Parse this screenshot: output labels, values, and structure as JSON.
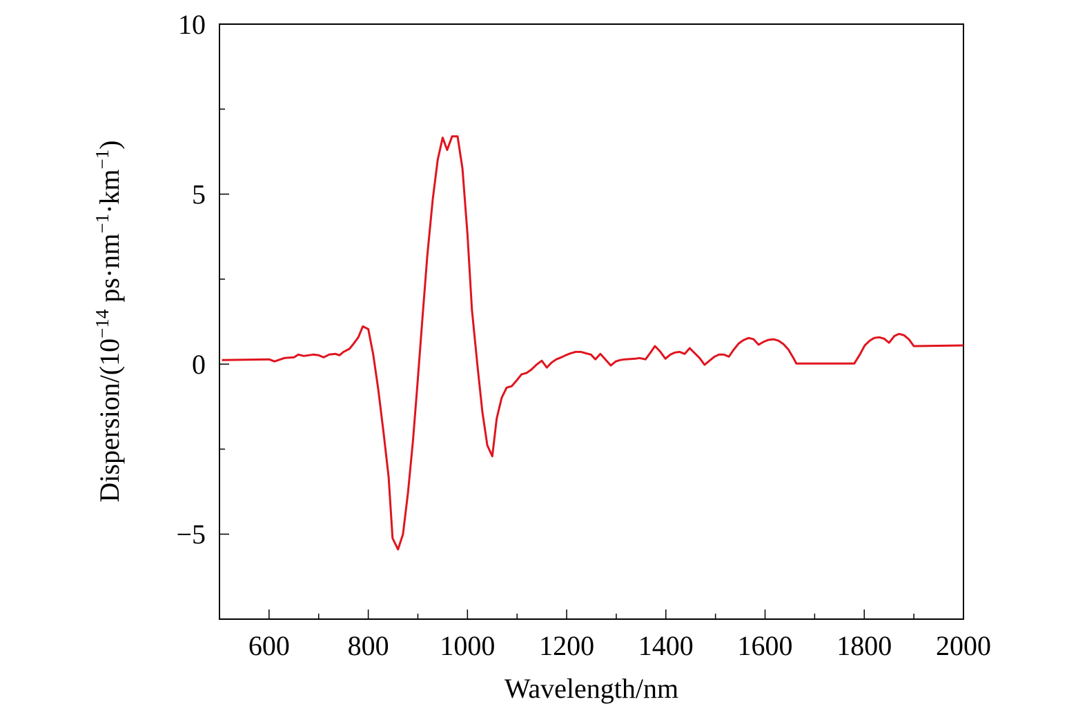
{
  "chart_data": {
    "type": "line",
    "xlabel": "Wavelength/nm",
    "ylabel": [
      "Dispersion/(10",
      "−14",
      " ps·nm",
      "−1",
      "·km",
      "−1",
      ")"
    ],
    "xlim": [
      500,
      2000
    ],
    "ylim": [
      -7.5,
      10
    ],
    "xticks": [
      600,
      800,
      1000,
      1200,
      1400,
      1600,
      1800,
      2000
    ],
    "xminor": [
      700,
      900,
      1100,
      1300,
      1500,
      1700,
      1900
    ],
    "yticks": [
      {
        "value": -5,
        "label": "−5"
      },
      0,
      5,
      10
    ],
    "yminor": [
      -2.5,
      2.5,
      7.5
    ],
    "series": [
      {
        "color": "#e0141e",
        "x": [
          505,
          600,
          611,
          631,
          650,
          659,
          670,
          689,
          700,
          710,
          721,
          734,
          742,
          750,
          762,
          770,
          780,
          789,
          800,
          810,
          820,
          831,
          841,
          849,
          860,
          870,
          880,
          890,
          899,
          909,
          919,
          930,
          940,
          950,
          959,
          969,
          980,
          990,
          1000,
          1009,
          1020,
          1030,
          1040,
          1050,
          1059,
          1069,
          1079,
          1089,
          1098,
          1109,
          1119,
          1129,
          1139,
          1150,
          1160,
          1169,
          1179,
          1189,
          1198,
          1208,
          1218,
          1229,
          1239,
          1249,
          1258,
          1268,
          1278,
          1289,
          1299,
          1308,
          1318,
          1338,
          1347,
          1359,
          1368,
          1378,
          1388,
          1399,
          1409,
          1418,
          1428,
          1438,
          1448,
          1457,
          1468,
          1478,
          1488,
          1498,
          1507,
          1517,
          1527,
          1537,
          1547,
          1557,
          1567,
          1577,
          1587,
          1596,
          1606,
          1617,
          1627,
          1637,
          1647,
          1658,
          1663,
          1780,
          1791,
          1801,
          1811,
          1820,
          1830,
          1840,
          1850,
          1861,
          1870,
          1880,
          1890,
          1900,
          2000
        ],
        "values": [
          0.12,
          0.14,
          0.08,
          0.18,
          0.2,
          0.28,
          0.24,
          0.28,
          0.26,
          0.2,
          0.28,
          0.3,
          0.26,
          0.36,
          0.45,
          0.59,
          0.79,
          1.11,
          1.03,
          0.28,
          -0.73,
          -2.04,
          -3.32,
          -5.12,
          -5.45,
          -5.0,
          -3.79,
          -2.27,
          -0.63,
          1.3,
          3.18,
          4.84,
          6.01,
          6.66,
          6.3,
          6.7,
          6.7,
          5.75,
          3.83,
          1.6,
          -0.02,
          -1.4,
          -2.39,
          -2.71,
          -1.6,
          -0.99,
          -0.69,
          -0.65,
          -0.5,
          -0.3,
          -0.26,
          -0.16,
          -0.02,
          0.1,
          -0.1,
          0.04,
          0.14,
          0.2,
          0.26,
          0.32,
          0.36,
          0.36,
          0.32,
          0.28,
          0.14,
          0.3,
          0.14,
          -0.04,
          0.08,
          0.12,
          0.14,
          0.16,
          0.18,
          0.14,
          0.32,
          0.53,
          0.38,
          0.16,
          0.28,
          0.34,
          0.36,
          0.3,
          0.47,
          0.34,
          0.18,
          -0.02,
          0.1,
          0.22,
          0.28,
          0.28,
          0.22,
          0.43,
          0.61,
          0.71,
          0.77,
          0.73,
          0.57,
          0.65,
          0.71,
          0.73,
          0.69,
          0.59,
          0.43,
          0.16,
          0.02,
          0.02,
          0.28,
          0.55,
          0.69,
          0.77,
          0.79,
          0.75,
          0.63,
          0.83,
          0.89,
          0.85,
          0.73,
          0.53,
          0.55
        ]
      }
    ]
  }
}
